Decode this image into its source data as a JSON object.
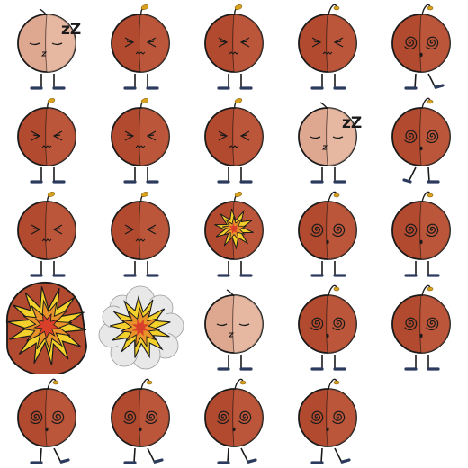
{
  "sheet": {
    "columns": 5,
    "rows": 5,
    "background": "#ffffff",
    "colors": {
      "body": "#b24a2f",
      "body_highlight": "#c46144",
      "body_pale": "#dea790",
      "body_pale_highlight": "#ecc4ae",
      "outline": "#1a1a1a",
      "stem": "#d9a21e",
      "leg": "#2c3a5e",
      "explosion_yellow": "#f3d02c",
      "explosion_orange": "#e8932a",
      "explosion_red": "#d8402a",
      "smoke": "#e8e8e8"
    },
    "sleep_text": "zZ",
    "frames": [
      {
        "state": "sleeping",
        "tint": "pale",
        "legs": "stand",
        "stem": "tall-left"
      },
      {
        "state": "squint",
        "tint": "normal",
        "legs": "stand",
        "stem": "sprout"
      },
      {
        "state": "squint",
        "tint": "normal",
        "legs": "stand",
        "stem": "sprout"
      },
      {
        "state": "squint",
        "tint": "normal",
        "legs": "stand",
        "stem": "curl-right"
      },
      {
        "state": "dizzy",
        "tint": "normal",
        "legs": "walk",
        "stem": "curl-right"
      },
      {
        "state": "squint",
        "tint": "normal",
        "legs": "stand",
        "stem": "sprout"
      },
      {
        "state": "squint",
        "tint": "normal",
        "legs": "stand",
        "stem": "sprout"
      },
      {
        "state": "squint",
        "tint": "normal",
        "legs": "stand",
        "stem": "sprout"
      },
      {
        "state": "sleeping",
        "tint": "pale",
        "legs": "stand",
        "stem": "tall-left"
      },
      {
        "state": "dizzy",
        "tint": "normal",
        "legs": "walk-back",
        "stem": "curl-right"
      },
      {
        "state": "squint",
        "tint": "normal",
        "legs": "stand",
        "stem": "sprout"
      },
      {
        "state": "squint",
        "tint": "normal",
        "legs": "stand",
        "stem": "sprout"
      },
      {
        "state": "crack",
        "tint": "normal",
        "legs": "stand",
        "stem": "sprout"
      },
      {
        "state": "dizzy",
        "tint": "normal",
        "legs": "stand",
        "stem": "curl-right"
      },
      {
        "state": "dizzy",
        "tint": "normal",
        "legs": "stand",
        "stem": "curl-right"
      },
      {
        "state": "explode",
        "tint": "normal",
        "legs": "stand",
        "stem": "none"
      },
      {
        "state": "smoke",
        "tint": "normal",
        "legs": "none",
        "stem": "none"
      },
      {
        "state": "sleeping-nozz",
        "tint": "pale",
        "legs": "stand",
        "stem": "tall-left"
      },
      {
        "state": "dizzy",
        "tint": "normal",
        "legs": "stand",
        "stem": "curl-right"
      },
      {
        "state": "dizzy",
        "tint": "normal",
        "legs": "stand",
        "stem": "curl-right"
      },
      {
        "state": "dizzy",
        "tint": "normal",
        "legs": "walk",
        "stem": "curl-right"
      },
      {
        "state": "dizzy",
        "tint": "normal",
        "legs": "walk",
        "stem": "curl-right"
      },
      {
        "state": "dizzy",
        "tint": "normal",
        "legs": "walk",
        "stem": "curl-right"
      },
      {
        "state": "dizzy",
        "tint": "normal",
        "legs": "walk",
        "stem": "curl-right"
      },
      {
        "state": "empty",
        "tint": "none",
        "legs": "none",
        "stem": "none"
      }
    ]
  }
}
